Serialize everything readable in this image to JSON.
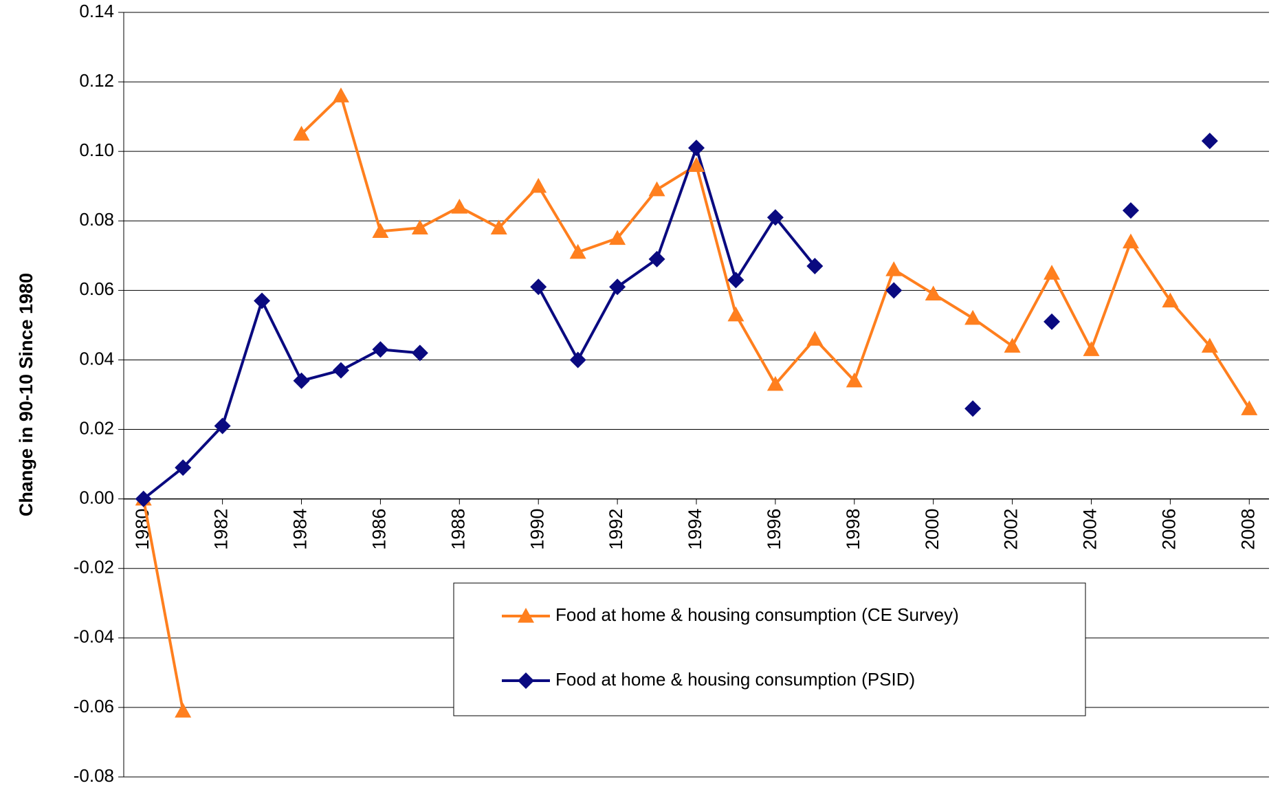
{
  "chart_data": {
    "type": "line",
    "y_label": "Change in 90-10 Since 1980",
    "x": [
      1980,
      1981,
      1982,
      1983,
      1984,
      1985,
      1986,
      1987,
      1988,
      1989,
      1990,
      1991,
      1992,
      1993,
      1994,
      1995,
      1996,
      1997,
      1998,
      1999,
      2000,
      2001,
      2002,
      2003,
      2004,
      2005,
      2006,
      2007,
      2008
    ],
    "xlim": [
      1979.5,
      2008.5
    ],
    "xticks": [
      1980,
      1982,
      1984,
      1986,
      1988,
      1990,
      1992,
      1994,
      1996,
      1998,
      2000,
      2002,
      2004,
      2006,
      2008
    ],
    "ylim": [
      -0.08,
      0.14
    ],
    "yticks": [
      0.14,
      0.12,
      {
        "value": 0.1,
        "label": "0.10"
      },
      0.08,
      0.06,
      0.04,
      0.02,
      {
        "value": 0,
        "label": "0.00"
      },
      -0.02,
      -0.04,
      -0.06,
      -0.08
    ],
    "grid": true,
    "series": [
      {
        "name": "Food at home & housing consumption (CE Survey)",
        "color": "#ff7f1e",
        "marker": "triangle",
        "values": [
          0,
          -0.061,
          null,
          null,
          0.105,
          0.116,
          0.077,
          0.078,
          0.084,
          0.078,
          0.09,
          0.071,
          0.075,
          0.089,
          0.096,
          0.053,
          0.033,
          0.046,
          0.034,
          0.066,
          0.059,
          0.052,
          0.044,
          0.065,
          0.043,
          0.074,
          0.057,
          0.044,
          0.026
        ]
      },
      {
        "name": "Food at home & housing consumption (PSID)",
        "color": "#0a0a80",
        "marker": "diamond",
        "values": [
          0,
          0.009,
          0.021,
          0.057,
          0.034,
          0.037,
          0.043,
          0.042,
          null,
          null,
          0.061,
          0.04,
          0.061,
          0.069,
          0.101,
          0.063,
          0.081,
          0.067,
          null,
          0.06,
          null,
          0.026,
          null,
          0.051,
          null,
          0.083,
          null,
          0.103,
          null
        ]
      }
    ]
  }
}
